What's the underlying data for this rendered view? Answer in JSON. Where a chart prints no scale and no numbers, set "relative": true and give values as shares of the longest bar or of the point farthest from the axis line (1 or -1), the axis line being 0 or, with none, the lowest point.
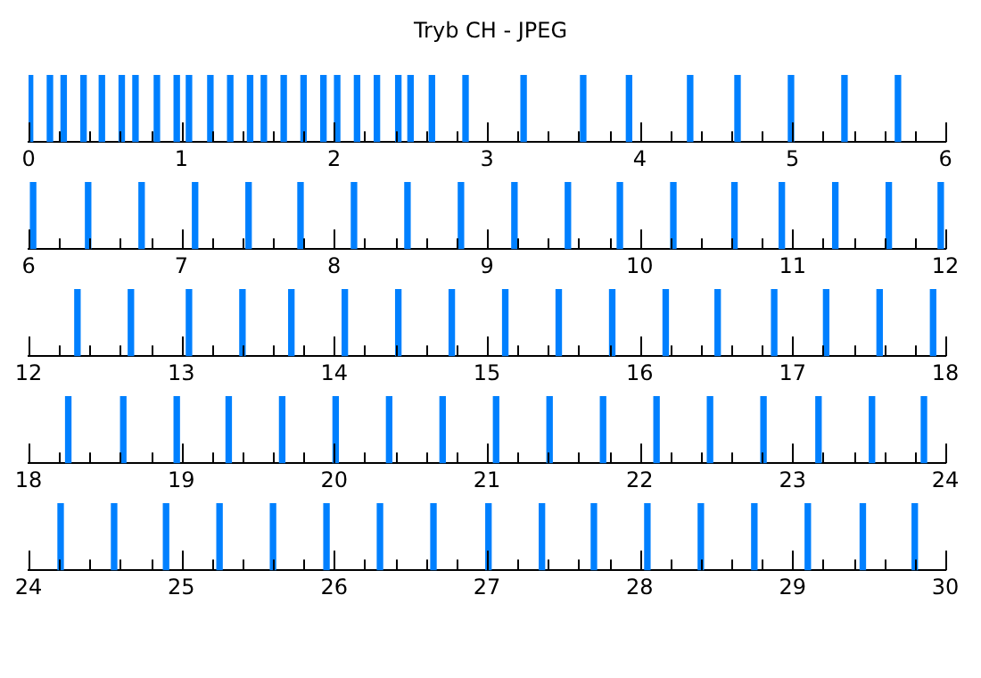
{
  "chart_data": [
    {
      "type": "bar",
      "title": "Tryb CH - JPEG",
      "relative": true,
      "color": "#0080ff",
      "x": [
        0.01,
        0.14,
        0.23,
        0.36,
        0.48,
        0.61,
        0.7,
        0.84,
        0.97,
        1.05,
        1.19,
        1.32,
        1.45,
        1.54,
        1.67,
        1.8,
        1.93,
        2.02,
        2.15,
        2.28,
        2.42,
        2.5,
        2.64,
        2.86,
        3.24,
        3.63,
        3.93,
        4.33,
        4.64,
        4.99,
        5.34,
        5.69
      ],
      "values": [
        1,
        1,
        1,
        1,
        1,
        1,
        1,
        1,
        1,
        1,
        1,
        1,
        1,
        1,
        1,
        1,
        1,
        1,
        1,
        1,
        1,
        1,
        1,
        1,
        1,
        1,
        1,
        1,
        1,
        1,
        1,
        1
      ],
      "xlim": [
        0,
        6
      ],
      "xticks": [
        0,
        {
          "value": 0.2,
          "label": null
        },
        {
          "value": 0.4,
          "label": null
        },
        {
          "value": 0.6,
          "label": null
        },
        {
          "value": 0.8,
          "label": null
        },
        1,
        {
          "value": 1.2,
          "label": null
        },
        {
          "value": 1.4,
          "label": null
        },
        {
          "value": 1.6,
          "label": null
        },
        {
          "value": 1.8,
          "label": null
        },
        2,
        {
          "value": 2.2,
          "label": null
        },
        {
          "value": 2.4,
          "label": null
        },
        {
          "value": 2.6,
          "label": null
        },
        {
          "value": 2.8,
          "label": null
        },
        3,
        {
          "value": 3.2,
          "label": null
        },
        {
          "value": 3.4,
          "label": null
        },
        {
          "value": 3.6,
          "label": null
        },
        {
          "value": 3.8,
          "label": null
        },
        4,
        {
          "value": 4.2,
          "label": null
        },
        {
          "value": 4.4,
          "label": null
        },
        {
          "value": 4.6,
          "label": null
        },
        {
          "value": 4.8,
          "label": null
        },
        5,
        {
          "value": 5.2,
          "label": null
        },
        {
          "value": 5.4,
          "label": null
        },
        {
          "value": 5.6,
          "label": null
        },
        {
          "value": 5.8,
          "label": null
        },
        6
      ]
    },
    {
      "type": "bar",
      "relative": true,
      "color": "#0080ff",
      "x": [
        6.03,
        6.39,
        6.74,
        7.09,
        7.44,
        7.78,
        8.13,
        8.48,
        8.83,
        9.18,
        9.53,
        9.87,
        10.22,
        10.62,
        10.93,
        11.28,
        11.63,
        11.97
      ],
      "values": [
        1,
        1,
        1,
        1,
        1,
        1,
        1,
        1,
        1,
        1,
        1,
        1,
        1,
        1,
        1,
        1,
        1,
        1
      ],
      "xlim": [
        6,
        12
      ],
      "xticks": [
        6,
        {
          "value": 6.2,
          "label": null
        },
        {
          "value": 6.4,
          "label": null
        },
        {
          "value": 6.6,
          "label": null
        },
        {
          "value": 6.8,
          "label": null
        },
        7,
        {
          "value": 7.2,
          "label": null
        },
        {
          "value": 7.4,
          "label": null
        },
        {
          "value": 7.6,
          "label": null
        },
        {
          "value": 7.8,
          "label": null
        },
        8,
        {
          "value": 8.2,
          "label": null
        },
        {
          "value": 8.4,
          "label": null
        },
        {
          "value": 8.6,
          "label": null
        },
        {
          "value": 8.8,
          "label": null
        },
        9,
        {
          "value": 9.2,
          "label": null
        },
        {
          "value": 9.4,
          "label": null
        },
        {
          "value": 9.6,
          "label": null
        },
        {
          "value": 9.8,
          "label": null
        },
        10,
        {
          "value": 10.2,
          "label": null
        },
        {
          "value": 10.4,
          "label": null
        },
        {
          "value": 10.6,
          "label": null
        },
        {
          "value": 10.8,
          "label": null
        },
        11,
        {
          "value": 11.2,
          "label": null
        },
        {
          "value": 11.4,
          "label": null
        },
        {
          "value": 11.6,
          "label": null
        },
        {
          "value": 11.8,
          "label": null
        },
        12
      ]
    },
    {
      "type": "bar",
      "relative": true,
      "color": "#0080ff",
      "x": [
        12.32,
        12.67,
        13.05,
        13.4,
        13.72,
        14.07,
        14.42,
        14.77,
        15.12,
        15.47,
        15.82,
        16.17,
        16.51,
        16.88,
        17.22,
        17.57,
        17.92
      ],
      "values": [
        1,
        1,
        1,
        1,
        1,
        1,
        1,
        1,
        1,
        1,
        1,
        1,
        1,
        1,
        1,
        1,
        1
      ],
      "xlim": [
        12,
        18
      ],
      "xticks": [
        12,
        {
          "value": 12.2,
          "label": null
        },
        {
          "value": 12.4,
          "label": null
        },
        {
          "value": 12.6,
          "label": null
        },
        {
          "value": 12.8,
          "label": null
        },
        13,
        {
          "value": 13.2,
          "label": null
        },
        {
          "value": 13.4,
          "label": null
        },
        {
          "value": 13.6,
          "label": null
        },
        {
          "value": 13.8,
          "label": null
        },
        14,
        {
          "value": 14.2,
          "label": null
        },
        {
          "value": 14.4,
          "label": null
        },
        {
          "value": 14.6,
          "label": null
        },
        {
          "value": 14.8,
          "label": null
        },
        15,
        {
          "value": 15.2,
          "label": null
        },
        {
          "value": 15.4,
          "label": null
        },
        {
          "value": 15.6,
          "label": null
        },
        {
          "value": 15.8,
          "label": null
        },
        16,
        {
          "value": 16.2,
          "label": null
        },
        {
          "value": 16.4,
          "label": null
        },
        {
          "value": 16.6,
          "label": null
        },
        {
          "value": 16.8,
          "label": null
        },
        17,
        {
          "value": 17.2,
          "label": null
        },
        {
          "value": 17.4,
          "label": null
        },
        {
          "value": 17.6,
          "label": null
        },
        {
          "value": 17.8,
          "label": null
        },
        18
      ]
    },
    {
      "type": "bar",
      "relative": true,
      "color": "#0080ff",
      "x": [
        18.26,
        18.62,
        18.97,
        19.31,
        19.66,
        20.01,
        20.36,
        20.71,
        21.06,
        21.41,
        21.76,
        22.11,
        22.46,
        22.81,
        23.17,
        23.52,
        23.86
      ],
      "values": [
        1,
        1,
        1,
        1,
        1,
        1,
        1,
        1,
        1,
        1,
        1,
        1,
        1,
        1,
        1,
        1,
        1
      ],
      "xlim": [
        18,
        24
      ],
      "xticks": [
        18,
        {
          "value": 18.2,
          "label": null
        },
        {
          "value": 18.4,
          "label": null
        },
        {
          "value": 18.6,
          "label": null
        },
        {
          "value": 18.8,
          "label": null
        },
        19,
        {
          "value": 19.2,
          "label": null
        },
        {
          "value": 19.4,
          "label": null
        },
        {
          "value": 19.6,
          "label": null
        },
        {
          "value": 19.8,
          "label": null
        },
        20,
        {
          "value": 20.2,
          "label": null
        },
        {
          "value": 20.4,
          "label": null
        },
        {
          "value": 20.6,
          "label": null
        },
        {
          "value": 20.8,
          "label": null
        },
        21,
        {
          "value": 21.2,
          "label": null
        },
        {
          "value": 21.4,
          "label": null
        },
        {
          "value": 21.6,
          "label": null
        },
        {
          "value": 21.8,
          "label": null
        },
        22,
        {
          "value": 22.2,
          "label": null
        },
        {
          "value": 22.4,
          "label": null
        },
        {
          "value": 22.6,
          "label": null
        },
        {
          "value": 22.8,
          "label": null
        },
        23,
        {
          "value": 23.2,
          "label": null
        },
        {
          "value": 23.4,
          "label": null
        },
        {
          "value": 23.6,
          "label": null
        },
        {
          "value": 23.8,
          "label": null
        },
        24
      ]
    },
    {
      "type": "bar",
      "relative": true,
      "color": "#0080ff",
      "x": [
        24.21,
        24.56,
        24.9,
        25.25,
        25.6,
        25.95,
        26.3,
        26.65,
        27.01,
        27.36,
        27.7,
        28.05,
        28.4,
        28.75,
        29.1,
        29.46,
        29.8
      ],
      "values": [
        1,
        1,
        1,
        1,
        1,
        1,
        1,
        1,
        1,
        1,
        1,
        1,
        1,
        1,
        1,
        1,
        1
      ],
      "xlim": [
        24,
        30
      ],
      "xticks": [
        24,
        {
          "value": 24.2,
          "label": null
        },
        {
          "value": 24.4,
          "label": null
        },
        {
          "value": 24.6,
          "label": null
        },
        {
          "value": 24.8,
          "label": null
        },
        25,
        {
          "value": 25.2,
          "label": null
        },
        {
          "value": 25.4,
          "label": null
        },
        {
          "value": 25.6,
          "label": null
        },
        {
          "value": 25.8,
          "label": null
        },
        26,
        {
          "value": 26.2,
          "label": null
        },
        {
          "value": 26.4,
          "label": null
        },
        {
          "value": 26.6,
          "label": null
        },
        {
          "value": 26.8,
          "label": null
        },
        27,
        {
          "value": 27.2,
          "label": null
        },
        {
          "value": 27.4,
          "label": null
        },
        {
          "value": 27.6,
          "label": null
        },
        {
          "value": 27.8,
          "label": null
        },
        28,
        {
          "value": 28.2,
          "label": null
        },
        {
          "value": 28.4,
          "label": null
        },
        {
          "value": 28.6,
          "label": null
        },
        {
          "value": 28.8,
          "label": null
        },
        29,
        {
          "value": 29.2,
          "label": null
        },
        {
          "value": 29.4,
          "label": null
        },
        {
          "value": 29.6,
          "label": null
        },
        {
          "value": 29.8,
          "label": null
        },
        30
      ]
    }
  ]
}
